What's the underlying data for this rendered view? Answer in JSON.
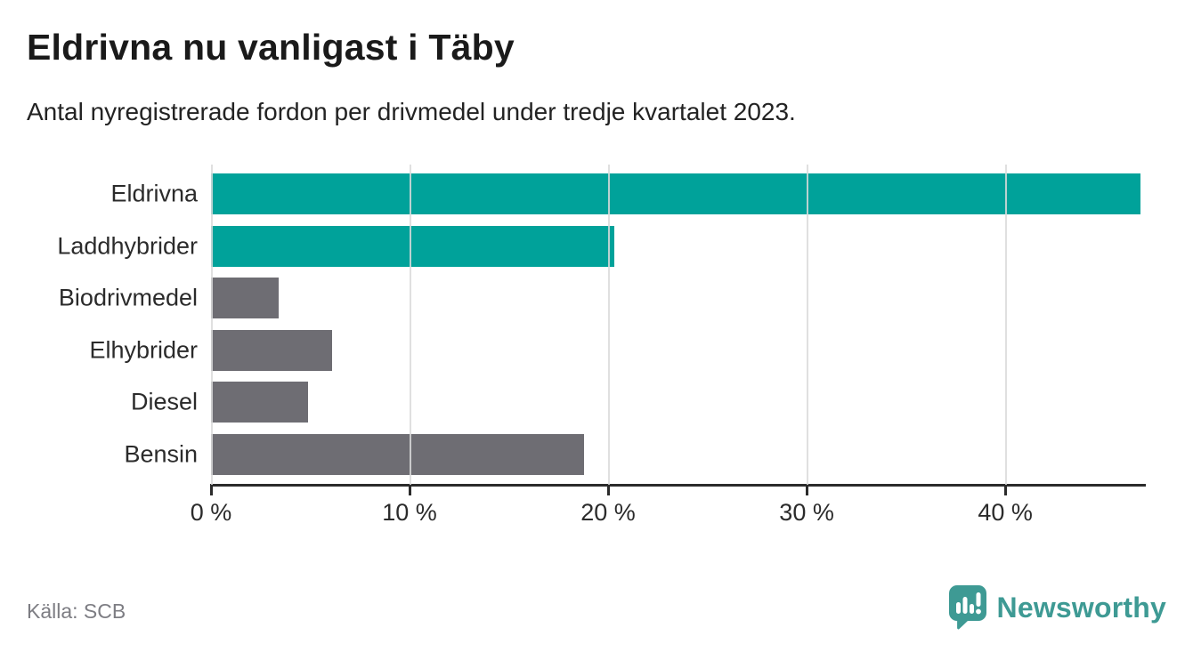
{
  "header": {
    "title": "Eldrivna nu vanligast i Täby",
    "subtitle": "Antal nyregistrerade fordon per drivmedel under tredje kvartalet 2023."
  },
  "chart_data": {
    "type": "bar",
    "orientation": "horizontal",
    "title": "Eldrivna nu vanligast i Täby",
    "subtitle": "Antal nyregistrerade fordon per drivmedel under tredje kvartalet 2023.",
    "categories": [
      "Eldrivna",
      "Laddhybrider",
      "Biodrivmedel",
      "Elhybrider",
      "Diesel",
      "Bensin"
    ],
    "values": [
      46.8,
      20.3,
      3.4,
      6.1,
      4.9,
      18.8
    ],
    "unit": "%",
    "bar_colors": [
      "#00a29a",
      "#00a29a",
      "#6e6d73",
      "#6e6d73",
      "#6e6d73",
      "#6e6d73"
    ],
    "xlabel": "",
    "ylabel": "",
    "xlim": [
      0,
      46.9
    ],
    "x_ticks": [
      0,
      10,
      20,
      30,
      40
    ],
    "x_tick_labels": [
      "0 %",
      "10 %",
      "20 %",
      "30 %",
      "40 %"
    ],
    "grid": "vertical-only",
    "legend": "none"
  },
  "colors": {
    "accent_teal": "#00a29a",
    "bar_gray": "#6e6d73",
    "gridline": "#dbdbdb",
    "axis": "#2b2b2b",
    "source_text": "#7d7d83",
    "brand_teal": "#3e9a94"
  },
  "footer": {
    "source": "Källa: SCB",
    "brand_name": "Newsworthy",
    "brand_icon": "newsworthy-speech-bubble-chart-icon"
  }
}
